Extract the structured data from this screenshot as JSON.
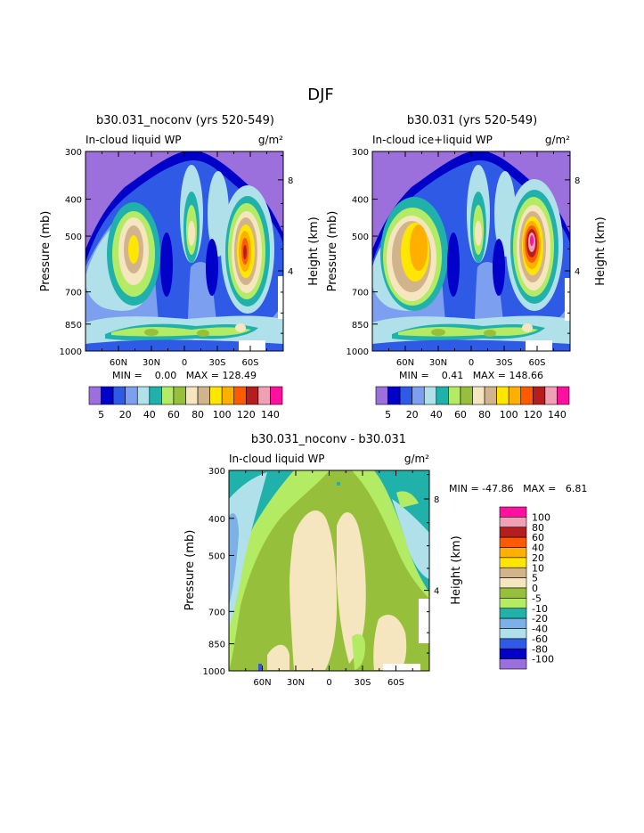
{
  "figure": {
    "title": "DJF"
  },
  "colors": {
    "abs": [
      "#9b6fdc",
      "#0000c8",
      "#2f5ae6",
      "#7c9ff0",
      "#b0e1ea",
      "#20b2aa",
      "#b4eb64",
      "#96c03c",
      "#f5e6c0",
      "#d2b48c",
      "#ffe600",
      "#ffaf00",
      "#ff5a00",
      "#b41e1e",
      "#f0a0b4",
      "#ff10a0"
    ],
    "diff": [
      "#ff10a0",
      "#f0a0b4",
      "#b41e1e",
      "#ff5a00",
      "#ffaf00",
      "#ffe600",
      "#d2b48c",
      "#f5e6c0",
      "#96c03c",
      "#b4eb64",
      "#20b2aa",
      "#7cb0e6",
      "#b0e1ea",
      "#2f5ae6",
      "#0000c8",
      "#9b6fdc"
    ]
  },
  "chart_data": [
    {
      "type": "heatmap",
      "title": "b30.031_noconv (yrs 520-549)",
      "subtitle_left": "In-cloud liquid WP",
      "units": "g/m²",
      "ylabel": "Pressure (mb)",
      "y2label": "Height (km)",
      "yticks": [
        "300",
        "400",
        "500",
        "700",
        "850",
        "1000"
      ],
      "y2ticks": [
        "8",
        "4"
      ],
      "xticks": [
        "60N",
        "30N",
        "0",
        "30S",
        "60S"
      ],
      "stats": "MIN =    0.00   MAX = 128.49",
      "colorbar_labels": [
        "5",
        "20",
        "40",
        "60",
        "80",
        "100",
        "120",
        "140"
      ]
    },
    {
      "type": "heatmap",
      "title": "b30.031 (yrs 520-549)",
      "subtitle_left": "In-cloud ice+liquid WP",
      "units": "g/m²",
      "ylabel": "Pressure (mb)",
      "y2label": "Height (km)",
      "yticks": [
        "300",
        "400",
        "500",
        "700",
        "850",
        "1000"
      ],
      "y2ticks": [
        "8",
        "4"
      ],
      "xticks": [
        "60N",
        "30N",
        "0",
        "30S",
        "60S"
      ],
      "stats": "MIN =    0.41   MAX = 148.66",
      "colorbar_labels": [
        "5",
        "20",
        "40",
        "60",
        "80",
        "100",
        "120",
        "140"
      ]
    },
    {
      "type": "heatmap",
      "title": "b30.031_noconv - b30.031",
      "subtitle_left": "In-cloud liquid WP",
      "units": "g/m²",
      "ylabel": "Pressure (mb)",
      "y2label": "Height (km)",
      "yticks": [
        "300",
        "400",
        "500",
        "700",
        "850",
        "1000"
      ],
      "y2ticks": [
        "8",
        "4"
      ],
      "xticks": [
        "60N",
        "30N",
        "0",
        "30S",
        "60S"
      ],
      "stats": "MIN = -47.86   MAX =   6.81",
      "colorbar_labels": [
        "100",
        "80",
        "60",
        "40",
        "20",
        "10",
        "5",
        "0",
        "-5",
        "-10",
        "-20",
        "-40",
        "-60",
        "-80",
        "-100"
      ]
    }
  ]
}
